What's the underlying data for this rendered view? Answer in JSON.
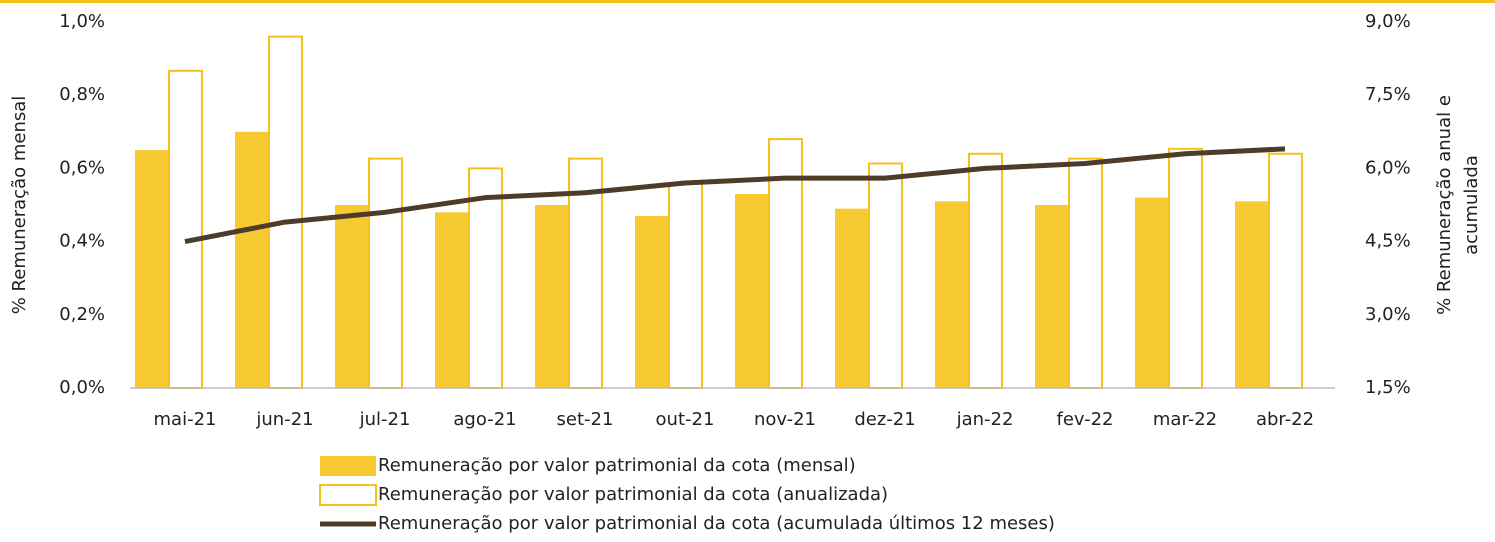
{
  "chart_data": {
    "type": "bar-line",
    "categories": [
      "mai-21",
      "jun-21",
      "jul-21",
      "ago-21",
      "set-21",
      "out-21",
      "nov-21",
      "dez-21",
      "jan-22",
      "fev-22",
      "mar-22",
      "abr-22"
    ],
    "series": [
      {
        "name": "Remuneração por valor patrimonial da cota (mensal)",
        "type": "bar",
        "style": "filled",
        "color": "#f8ca32",
        "axis": "y",
        "values": [
          0.65,
          0.7,
          0.5,
          0.48,
          0.5,
          0.47,
          0.53,
          0.49,
          0.51,
          0.5,
          0.52,
          0.51
        ]
      },
      {
        "name": "Remuneração por valor patrimonial da cota (anualizada)",
        "type": "bar",
        "style": "outline",
        "color": "#f5c21b",
        "axis": "y2",
        "values": [
          8.0,
          8.7,
          6.2,
          6.0,
          6.2,
          5.7,
          6.6,
          6.1,
          6.3,
          6.2,
          6.4,
          6.3
        ]
      },
      {
        "name": "Remuneração por valor patrimonial da cota (acumulada últimos 12 meses)",
        "type": "line",
        "color": "#4e3b28",
        "axis": "y2",
        "values": [
          4.5,
          4.9,
          5.1,
          5.4,
          5.5,
          5.7,
          5.8,
          5.8,
          6.0,
          6.1,
          6.3,
          6.4
        ]
      }
    ],
    "ylabel": "% Remuneração mensal",
    "y2label": [
      "% Remuneração anual e",
      "acumulada"
    ],
    "ylim": [
      0,
      1.0
    ],
    "yticks": [
      {
        "value": 0,
        "label": "0,0%"
      },
      {
        "value": 0.2,
        "label": "0,2%"
      },
      {
        "value": 0.4,
        "label": "0,4%"
      },
      {
        "value": 0.6,
        "label": "0,6%"
      },
      {
        "value": 0.8,
        "label": "0,8%"
      },
      {
        "value": 1.0,
        "label": "1,0%"
      }
    ],
    "y2lim": [
      1.5,
      9.0
    ],
    "y2ticks": [
      {
        "value": 1.5,
        "label": "1,5%"
      },
      {
        "value": 3.0,
        "label": "3,0%"
      },
      {
        "value": 4.5,
        "label": "4,5%"
      },
      {
        "value": 6.0,
        "label": "6,0%"
      },
      {
        "value": 7.5,
        "label": "7,5%"
      },
      {
        "value": 9.0,
        "label": "9,0%"
      }
    ],
    "legend": "bottom"
  }
}
